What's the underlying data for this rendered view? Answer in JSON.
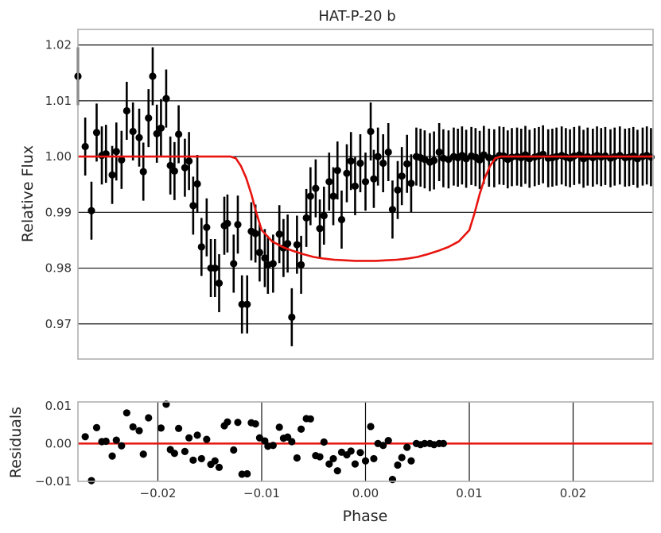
{
  "chart_data": [
    {
      "type": "scatter",
      "panel": "top",
      "title": "HAT-P-20 b",
      "xlabel": "",
      "ylabel": "Relative Flux",
      "xlim": [
        -0.0277,
        0.0277
      ],
      "ylim": [
        0.9637,
        1.0228
      ],
      "yticks": [
        0.97,
        0.98,
        0.99,
        1.0,
        1.01,
        1.02
      ],
      "ytick_labels": [
        "0.97",
        "0.98",
        "0.99",
        "1.00",
        "1.01",
        "1.02"
      ],
      "grid": "horizontal",
      "series": [
        {
          "kind": "points-with-errorbars",
          "color": "#000000",
          "x": [
            -0.0277,
            -0.027,
            -0.0264,
            -0.0259,
            -0.0254,
            -0.025,
            -0.0244,
            -0.024,
            -0.0235,
            -0.023,
            -0.0224,
            -0.0218,
            -0.0214,
            -0.0209,
            -0.0205,
            -0.0201,
            -0.0197,
            -0.0192,
            -0.0188,
            -0.0184,
            -0.018,
            -0.0174,
            -0.017,
            -0.0166,
            -0.0162,
            -0.0158,
            -0.0153,
            -0.0149,
            -0.0145,
            -0.0141,
            -0.0136,
            -0.0133,
            -0.0127,
            -0.0123,
            -0.0119,
            -0.0114,
            -0.011,
            -0.0106,
            -0.0102,
            -0.0097,
            -0.0094,
            -0.0089,
            -0.0083,
            -0.0079,
            -0.0075,
            -0.0071,
            -0.0066,
            -0.0062,
            -0.0057,
            -0.0053,
            -0.0048,
            -0.0044,
            -0.004,
            -0.0035,
            -0.0031,
            -0.0027,
            -0.0023,
            -0.0018,
            -0.0014,
            -0.001,
            -0.0005,
            0.0,
            0.0005,
            0.0008,
            0.0012,
            0.0017,
            0.0022,
            0.0026,
            0.0031,
            0.0035,
            0.004,
            0.0044,
            0.0049,
            0.0053,
            0.0057,
            0.0062,
            0.0066,
            0.0071,
            0.0075,
            0.008,
            0.0085,
            0.0089,
            0.0093,
            0.0097,
            0.0102,
            0.0106,
            0.011,
            0.0114,
            0.0119,
            0.0124,
            0.0129,
            0.0133,
            0.0137,
            0.0141,
            0.0146,
            0.015,
            0.0154,
            0.0158,
            0.0163,
            0.0167,
            0.0171,
            0.0176,
            0.018,
            0.0184,
            0.0189,
            0.0193,
            0.0197,
            0.0201,
            0.0206,
            0.021,
            0.0214,
            0.0219,
            0.0223,
            0.0227,
            0.0231,
            0.0236,
            0.024,
            0.0245,
            0.025,
            0.0254,
            0.0258,
            0.0262,
            0.0267,
            0.0271,
            0.0275
          ],
          "y": [
            1.0144,
            1.0018,
            0.9903,
            1.0043,
            1.0002,
            1.0005,
            0.9967,
            1.0009,
            0.9994,
            1.0082,
            1.0045,
            1.0034,
            0.9973,
            1.0069,
            1.0144,
            1.0041,
            1.0051,
            1.0104,
            0.9984,
            0.9974,
            1.004,
            0.998,
            0.9992,
            0.9912,
            0.9951,
            0.9838,
            0.9873,
            0.98,
            0.98,
            0.9773,
            0.9876,
            0.988,
            0.9808,
            0.9878,
            0.9735,
            0.9735,
            0.9866,
            0.9862,
            0.9828,
            0.9818,
            0.9806,
            0.9808,
            0.9861,
            0.9836,
            0.9844,
            0.9712,
            0.9842,
            0.9806,
            0.989,
            0.9929,
            0.9943,
            0.9871,
            0.9894,
            0.9955,
            0.9929,
            0.9975,
            0.9887,
            0.997,
            0.9992,
            0.9947,
            0.9988,
            0.9955,
            1.0045,
            0.996,
            1.0,
            0.9988,
            1.0008,
            0.9905,
            0.994,
            0.9965,
            0.9987,
            0.9952,
            1.0,
            0.9998,
            0.9995,
            0.999,
            0.9993,
            1.0008,
            0.9997,
            0.9995,
            1.0,
            0.9998,
            1.0002,
            0.9996,
            1.0001,
            0.9999,
            0.9994,
            1.0003,
            0.9998,
            0.9997,
            1.0002,
            1.0001,
            0.9995,
            0.9999,
            1.0,
            0.9998,
            1.0003,
            0.9996,
            0.9999,
            1.0001,
            1.0004,
            0.9997,
            0.9998,
            1.0,
            1.0002,
            0.9999,
            0.9997,
            1.0001,
            1.0003,
            0.9996,
            1.0,
            0.9998,
            1.0002,
            0.9999,
            1.0001,
            0.9997,
            1.0,
            1.0002,
            0.9998,
            0.9999,
            1.0001,
            0.9996,
            1.0,
            1.0002,
            0.9999
          ],
          "yerr": 0.0052
        },
        {
          "kind": "model-line",
          "color": "#e8140f",
          "x": [
            -0.0277,
            -0.013,
            -0.0125,
            -0.012,
            -0.0115,
            -0.011,
            -0.0105,
            -0.01,
            -0.009,
            -0.008,
            -0.007,
            -0.006,
            -0.005,
            -0.004,
            -0.003,
            -0.002,
            -0.001,
            0.0,
            0.001,
            0.002,
            0.003,
            0.004,
            0.005,
            0.006,
            0.007,
            0.008,
            0.009,
            0.01,
            0.0105,
            0.011,
            0.0115,
            0.012,
            0.0125,
            0.013,
            0.0277
          ],
          "y": [
            1.0,
            1.0,
            0.9997,
            0.9983,
            0.9962,
            0.9933,
            0.9898,
            0.9868,
            0.9848,
            0.9838,
            0.9831,
            0.9825,
            0.982,
            0.9817,
            0.9815,
            0.9814,
            0.9813,
            0.9813,
            0.9813,
            0.9814,
            0.9815,
            0.9817,
            0.982,
            0.9825,
            0.9831,
            0.9838,
            0.9848,
            0.9868,
            0.9898,
            0.9933,
            0.9962,
            0.9983,
            0.9997,
            1.0,
            1.0
          ]
        }
      ]
    },
    {
      "type": "scatter",
      "panel": "bottom",
      "title": "",
      "xlabel": "Phase",
      "ylabel": "Residuals",
      "xlim": [
        -0.0277,
        0.0277
      ],
      "ylim": [
        -0.01,
        0.011
      ],
      "xticks": [
        -0.02,
        -0.01,
        0.0,
        0.01,
        0.02
      ],
      "xtick_labels": [
        "−0.02",
        "−0.01",
        "0.00",
        "0.01",
        "0.02"
      ],
      "yticks": [
        -0.01,
        0.0,
        0.01
      ],
      "ytick_labels": [
        "−0.01",
        "0.00",
        "0.01"
      ],
      "grid": "vertical",
      "series": [
        {
          "kind": "points",
          "color": "#000000",
          "x": [
            -0.027,
            -0.0264,
            -0.0259,
            -0.0254,
            -0.025,
            -0.0244,
            -0.024,
            -0.0235,
            -0.023,
            -0.0224,
            -0.0218,
            -0.0214,
            -0.0209,
            -0.0197,
            -0.0192,
            -0.0188,
            -0.0184,
            -0.018,
            -0.0174,
            -0.017,
            -0.0166,
            -0.0162,
            -0.0158,
            -0.0153,
            -0.0149,
            -0.0145,
            -0.0141,
            -0.0136,
            -0.0133,
            -0.0127,
            -0.0123,
            -0.0119,
            -0.0114,
            -0.011,
            -0.0106,
            -0.0102,
            -0.0097,
            -0.0094,
            -0.0089,
            -0.0083,
            -0.0079,
            -0.0075,
            -0.0071,
            -0.0066,
            -0.0062,
            -0.0057,
            -0.0053,
            -0.0048,
            -0.0044,
            -0.004,
            -0.0035,
            -0.0031,
            -0.0027,
            -0.0023,
            -0.0018,
            -0.0014,
            -0.001,
            -0.0005,
            0.0,
            0.0005,
            0.0008,
            0.0012,
            0.0017,
            0.0022,
            0.0026,
            0.0031,
            0.0035,
            0.004,
            0.0044,
            0.0049,
            0.0053,
            0.0057,
            0.0062,
            0.0066,
            0.0071,
            0.0075
          ],
          "y": [
            0.0018,
            -0.0098,
            0.0042,
            0.0005,
            0.0006,
            -0.0033,
            0.0009,
            -0.0006,
            0.0081,
            0.0044,
            0.0034,
            -0.0028,
            0.0068,
            0.0041,
            0.0104,
            -0.0016,
            -0.0026,
            0.004,
            -0.0021,
            0.0015,
            -0.0044,
            0.0022,
            -0.004,
            0.0011,
            -0.0055,
            -0.0046,
            -0.0063,
            0.0047,
            0.0057,
            -0.0017,
            0.0056,
            -0.0081,
            -0.008,
            0.0055,
            0.0052,
            0.0015,
            0.0007,
            -0.0007,
            -0.0005,
            0.0043,
            0.0014,
            0.0017,
            0.0005,
            -0.0038,
            0.0038,
            0.0066,
            0.0065,
            -0.0032,
            -0.0035,
            0.0004,
            -0.0054,
            -0.004,
            -0.0072,
            -0.0023,
            -0.003,
            -0.002,
            -0.0054,
            -0.0024,
            -0.0046,
            0.0045,
            -0.004,
            0.0,
            -0.0005,
            0.0008,
            -0.0095,
            -0.0057,
            -0.0037,
            -0.001,
            -0.0046,
            0.0,
            -0.0003,
            0.0,
            0.0,
            -0.0003,
            0.0,
            0.0
          ],
          "y_visible_count": 76
        },
        {
          "kind": "zero-line",
          "color": "#e8140f",
          "y": 0.0
        }
      ]
    }
  ]
}
